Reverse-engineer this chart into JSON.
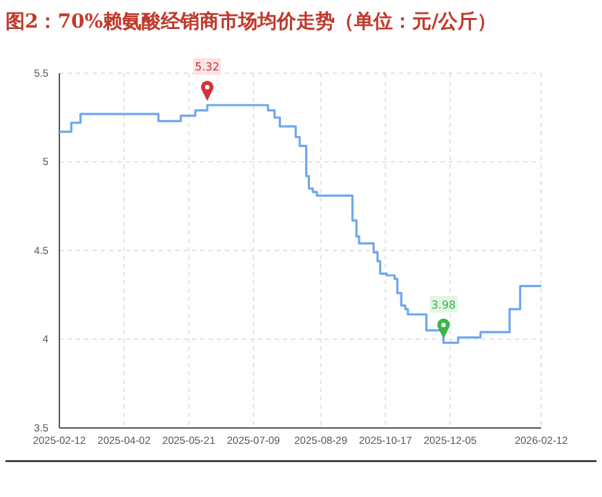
{
  "chart_data": {
    "type": "step",
    "title": "图2：70%赖氨酸经销商市场均价走势（单位：元/公斤）",
    "x": [
      "2025-02-12",
      "2025-02-21",
      "2025-02-28",
      "2025-04-28",
      "2025-05-15",
      "2025-05-26",
      "2025-06-04",
      "2025-07-20",
      "2025-07-25",
      "2025-07-29",
      "2025-08-10",
      "2025-08-13",
      "2025-08-18",
      "2025-08-20",
      "2025-08-23",
      "2025-08-26",
      "2025-09-22",
      "2025-09-25",
      "2025-09-27",
      "2025-10-08",
      "2025-10-11",
      "2025-10-13",
      "2025-10-18",
      "2025-10-24",
      "2025-10-26",
      "2025-10-29",
      "2025-11-01",
      "2025-11-03",
      "2025-11-17",
      "2025-11-30",
      "2025-12-11",
      "2025-12-28",
      "2026-01-19",
      "2026-01-27",
      "2026-02-12"
    ],
    "series": [
      {
        "color": "#6fa8ee",
        "values": [
          5.17,
          5.22,
          5.27,
          5.23,
          5.26,
          5.29,
          5.32,
          5.29,
          5.25,
          5.2,
          5.14,
          5.09,
          4.92,
          4.85,
          4.83,
          4.81,
          4.67,
          4.58,
          4.54,
          4.49,
          4.44,
          4.37,
          4.36,
          4.34,
          4.26,
          4.19,
          4.17,
          4.14,
          4.05,
          3.98,
          4.01,
          4.04,
          4.17,
          4.3,
          4.3
        ]
      }
    ],
    "xlim": [
      "2025-02-12",
      "2026-02-12"
    ],
    "xticks": [
      {
        "value": "2025-02-12",
        "label": "2025-02-12"
      },
      {
        "value": "2025-04-02",
        "label": "2025-04-02"
      },
      {
        "value": "2025-05-21",
        "label": "2025-05-21"
      },
      {
        "value": "2025-07-09",
        "label": "2025-07-09"
      },
      {
        "value": "2025-08-29",
        "label": "2025-08-29"
      },
      {
        "value": "2025-10-17",
        "label": "2025-10-17"
      },
      {
        "value": "2025-12-05",
        "label": "2025-12-05"
      },
      {
        "value": "2026-02-12",
        "label": "2026-02-12"
      }
    ],
    "ylim": [
      3.5,
      5.5
    ],
    "yticks": [
      3.5,
      4,
      4.5,
      5,
      5.5
    ],
    "grid": true,
    "marker": "none",
    "line_style": "solid",
    "annotations": [
      {
        "text": "5.32",
        "x": "2025-06-04",
        "y": 5.32
      },
      {
        "text": "3.98",
        "x": "2025-11-30",
        "y": 3.98
      }
    ]
  }
}
